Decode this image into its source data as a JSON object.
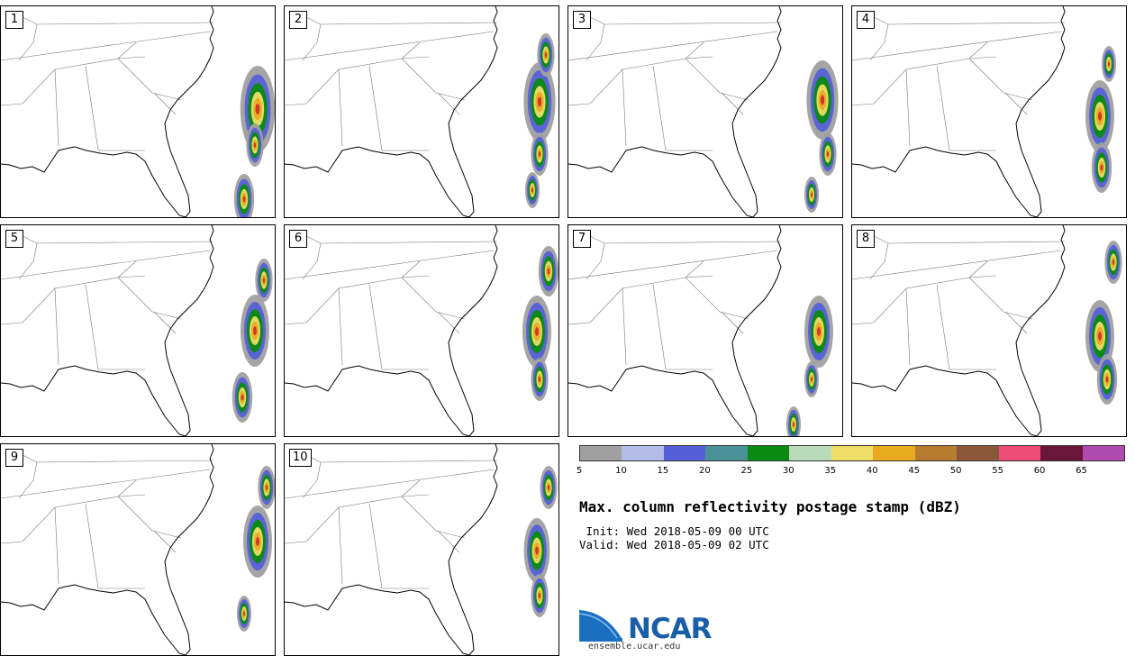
{
  "panels": [
    {
      "num": "1"
    },
    {
      "num": "2"
    },
    {
      "num": "3"
    },
    {
      "num": "4"
    },
    {
      "num": "5"
    },
    {
      "num": "6"
    },
    {
      "num": "7"
    },
    {
      "num": "8"
    },
    {
      "num": "9"
    },
    {
      "num": "10"
    }
  ],
  "colorbar": {
    "colors": [
      "#a0a0a0",
      "#b4bce8",
      "#5560d8",
      "#4a9098",
      "#0a8a10",
      "#b8dcb8",
      "#eedd66",
      "#eaaa20",
      "#b87c30",
      "#8a5838",
      "#ee4c78",
      "#6a1638",
      "#b04ab0"
    ],
    "labels": [
      "5",
      "10",
      "15",
      "20",
      "25",
      "30",
      "35",
      "40",
      "45",
      "50",
      "55",
      "60",
      "65"
    ]
  },
  "title": "Max. column reflectivity postage stamp (dBZ)",
  "init_line": " Init: Wed 2018-05-09 00 UTC",
  "valid_line": "Valid: Wed 2018-05-09 02 UTC",
  "logo": {
    "text": "NCAR",
    "site": "ensemble.ucar.edu"
  }
}
